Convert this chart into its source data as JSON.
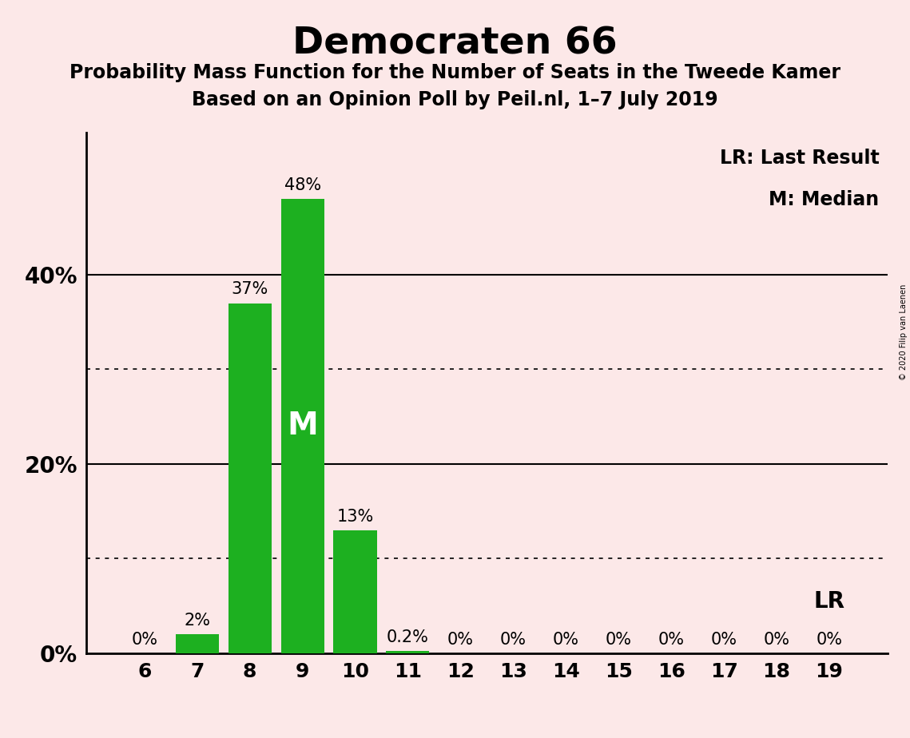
{
  "title": "Democraten 66",
  "subtitle1": "Probability Mass Function for the Number of Seats in the Tweede Kamer",
  "subtitle2": "Based on an Opinion Poll by Peil.nl, 1–7 July 2019",
  "categories": [
    6,
    7,
    8,
    9,
    10,
    11,
    12,
    13,
    14,
    15,
    16,
    17,
    18,
    19
  ],
  "values": [
    0.0,
    2.0,
    37.0,
    48.0,
    13.0,
    0.2,
    0.0,
    0.0,
    0.0,
    0.0,
    0.0,
    0.0,
    0.0,
    0.0
  ],
  "labels": [
    "0%",
    "2%",
    "37%",
    "48%",
    "13%",
    "0.2%",
    "0%",
    "0%",
    "0%",
    "0%",
    "0%",
    "0%",
    "0%",
    "0%"
  ],
  "bar_color": "#1db020",
  "background_color": "#fce8e8",
  "ylim": [
    0,
    55
  ],
  "solid_gridlines": [
    20,
    40
  ],
  "dotted_gridlines": [
    10,
    30
  ],
  "median_bar": 9,
  "median_label": "M",
  "lr_bar": 19,
  "lr_label": "LR",
  "legend_lr": "LR: Last Result",
  "legend_m": "M: Median",
  "copyright": "© 2020 Filip van Laenen",
  "title_fontsize": 34,
  "subtitle_fontsize": 17,
  "bar_width": 0.82,
  "label_fontsize": 15,
  "tick_fontsize": 18,
  "ytick_fontsize": 20,
  "legend_fontsize": 17,
  "lr_fontsize": 20,
  "m_fontsize": 28,
  "copyright_fontsize": 7
}
